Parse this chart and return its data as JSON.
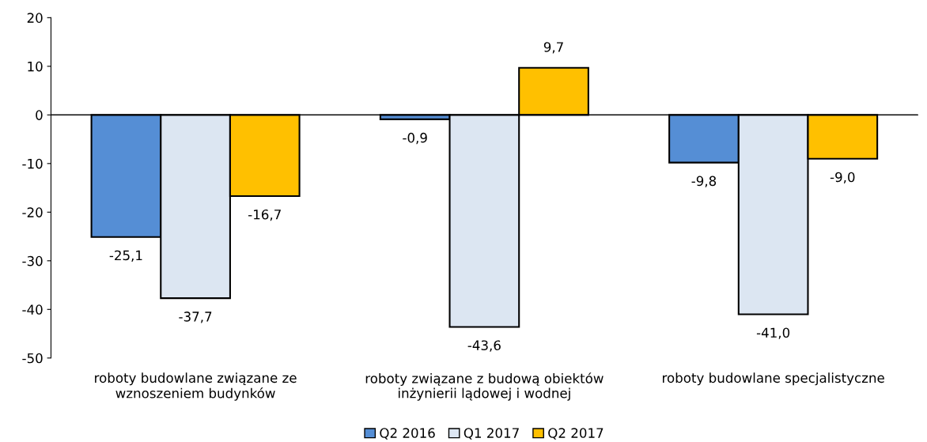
{
  "chart_data": {
    "type": "bar",
    "categories": [
      "roboty budowlane związane ze\nwznoszeniem budynków",
      "roboty związane z budową obiektów\ninżynierii lądowej i wodnej",
      "roboty budowlane specjalistyczne"
    ],
    "series": [
      {
        "name": "Q2 2016",
        "color": "#558ed5",
        "values": [
          -25.1,
          -0.9,
          -9.8
        ],
        "value_labels": [
          "-25,1",
          "-0,9",
          "-9,8"
        ]
      },
      {
        "name": "Q1 2017",
        "color": "#dce6f2",
        "values": [
          -37.7,
          -43.6,
          -41.0
        ],
        "value_labels": [
          "-37,7",
          "-43,6",
          "-41,0"
        ]
      },
      {
        "name": "Q2 2017",
        "color": "#ffc000",
        "values": [
          -16.7,
          9.7,
          -9.0
        ],
        "value_labels": [
          "-16,7",
          "9,7",
          "-9,0"
        ]
      }
    ],
    "ylim": [
      -50,
      20
    ],
    "yticks": [
      -50,
      -40,
      -30,
      -20,
      -10,
      0,
      10,
      20
    ],
    "grid": false,
    "legend": "bottom"
  }
}
